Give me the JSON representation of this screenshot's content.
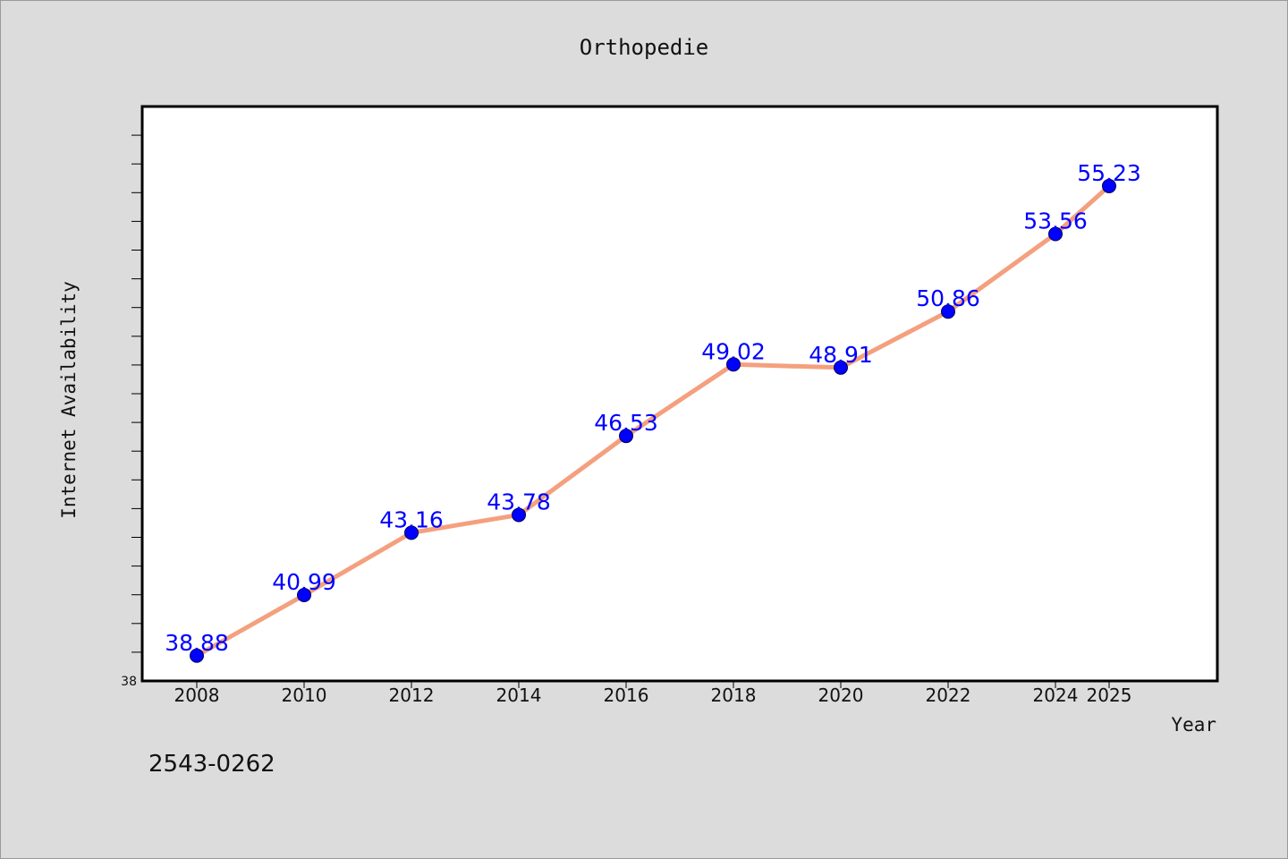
{
  "chart_data": {
    "type": "line",
    "title": "Orthopedie",
    "xlabel": "Year",
    "ylabel": "Internet Availability",
    "x": [
      2008,
      2010,
      2012,
      2014,
      2016,
      2018,
      2020,
      2022,
      2024,
      2025
    ],
    "x_tick_labels": [
      "2008",
      "2010",
      "2012",
      "2014",
      "2016",
      "2018",
      "2020",
      "2022",
      "2024",
      "2025"
    ],
    "series": [
      {
        "values": [
          38.88,
          40.99,
          43.16,
          43.78,
          46.53,
          49.02,
          48.91,
          50.86,
          53.56,
          55.23
        ],
        "labels": [
          "38.88",
          "40.99",
          "43.16",
          "43.78",
          "46.53",
          "49.02",
          "48.91",
          "50.86",
          "53.56",
          "55.23"
        ],
        "line_color": "#f4a07e",
        "marker_color": "#0000ff"
      }
    ],
    "ylim": [
      38,
      58
    ],
    "y_min_label": "38",
    "grid": false,
    "background": "#ffffff",
    "figure_background": "#dcdcdc"
  },
  "footer": {
    "code": "2543-0262"
  }
}
